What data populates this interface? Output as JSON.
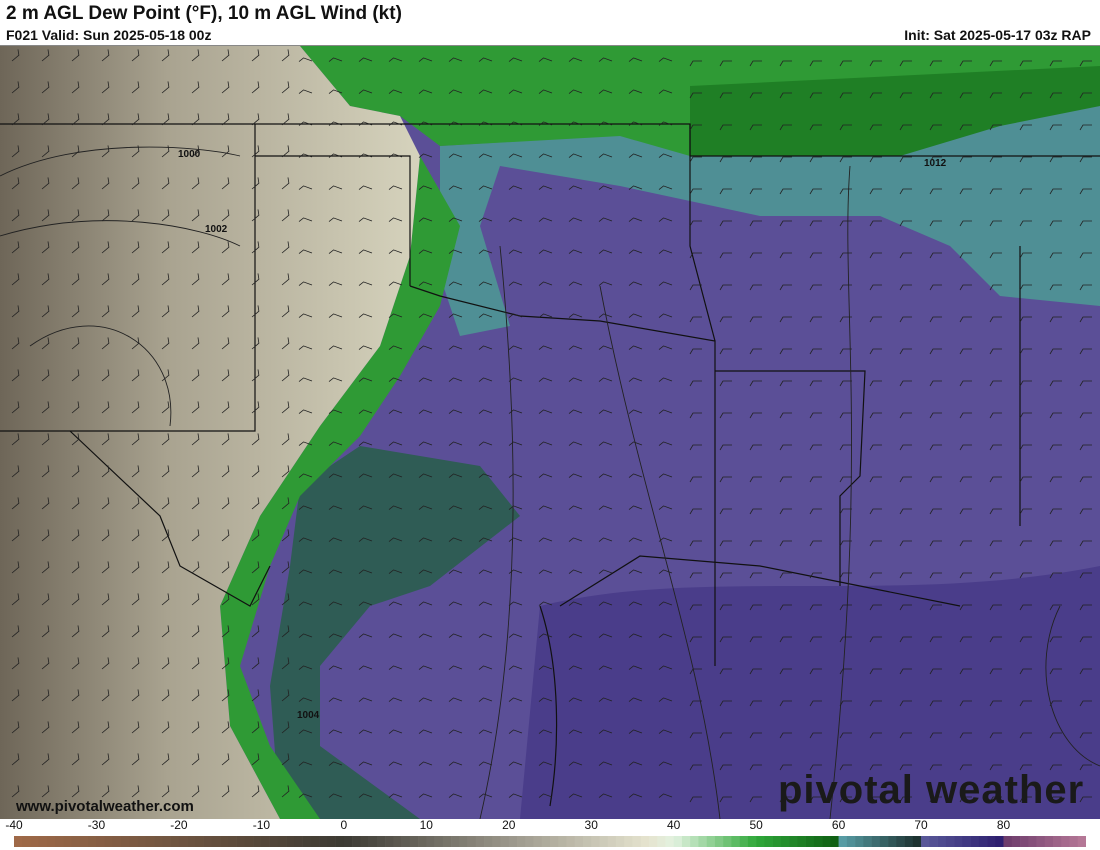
{
  "header": {
    "title": "2 m AGL Dew Point (°F), 10 m AGL Wind (kt)",
    "valid": "F021 Valid: Sun 2025-05-18 00z",
    "init": "Init: Sat 2025-05-17 03z RAP"
  },
  "map": {
    "contour_labels": [
      "1000",
      "1002",
      "1004",
      "1012"
    ],
    "fill_colors": {
      "dry": "#b9b39f",
      "moist_green": "#2f9a35",
      "teal": "#4f8f95",
      "purple": "#5c4f98"
    }
  },
  "watermark": {
    "url": "www.pivotalweather.com",
    "logo": "pivotal weather"
  },
  "colorbar": {
    "min": -40,
    "max": 90,
    "labels": [
      "-40",
      "-30",
      "-20",
      "-10",
      "0",
      "10",
      "20",
      "30",
      "40",
      "50",
      "60",
      "70",
      "80"
    ],
    "stops": [
      {
        "v": -40,
        "c": "#a06a48"
      },
      {
        "v": -20,
        "c": "#6e5440"
      },
      {
        "v": 0,
        "c": "#3c3a33"
      },
      {
        "v": 20,
        "c": "#9a968a"
      },
      {
        "v": 37,
        "c": "#e6e4cf"
      },
      {
        "v": 40,
        "c": "#e2f2e0"
      },
      {
        "v": 50,
        "c": "#2fa83a"
      },
      {
        "v": 59.9,
        "c": "#0e5e12"
      },
      {
        "v": 60,
        "c": "#5aa2aa"
      },
      {
        "v": 69.9,
        "c": "#1a2e2c"
      },
      {
        "v": 70,
        "c": "#5a5a9a"
      },
      {
        "v": 79.9,
        "c": "#2c1e6e"
      },
      {
        "v": 80,
        "c": "#6a3a6a"
      },
      {
        "v": 90,
        "c": "#b87a98"
      }
    ]
  }
}
